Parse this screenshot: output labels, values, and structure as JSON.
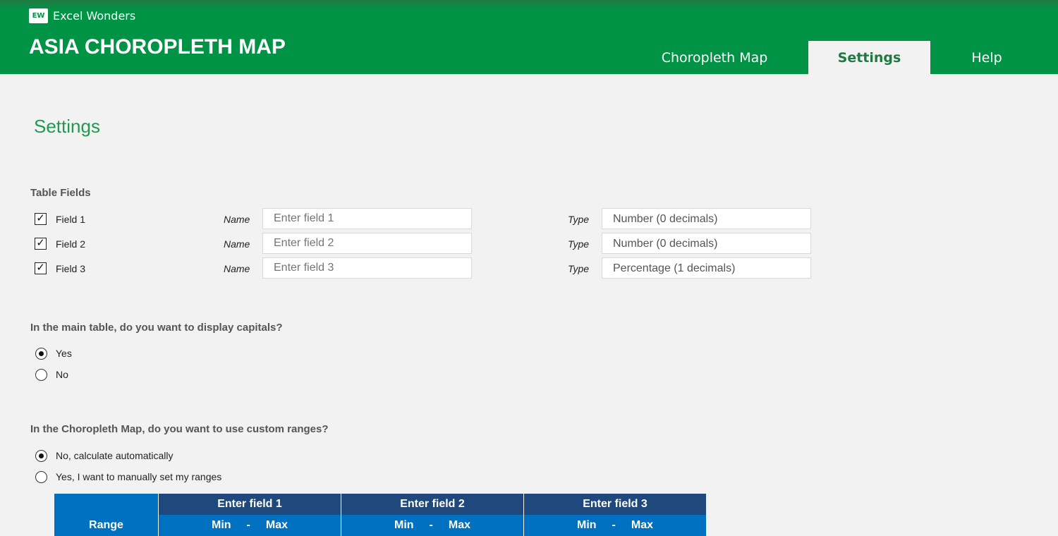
{
  "header": {
    "brand": "Excel Wonders",
    "brand_mark": "EW",
    "title": "ASIA CHOROPLETH MAP",
    "tabs": [
      {
        "label": "Choropleth Map",
        "active": false
      },
      {
        "label": "Settings",
        "active": true
      },
      {
        "label": "Help",
        "active": false
      }
    ]
  },
  "page_title": "Settings",
  "table_fields": {
    "heading": "Table Fields",
    "name_label": "Name",
    "type_label": "Type",
    "fields": [
      {
        "label": "Field 1",
        "checked": true,
        "name_placeholder": "Enter field 1",
        "type": "Number (0 decimals)"
      },
      {
        "label": "Field 2",
        "checked": true,
        "name_placeholder": "Enter field 2",
        "type": "Number (0 decimals)"
      },
      {
        "label": "Field 3",
        "checked": true,
        "name_placeholder": "Enter field 3",
        "type": "Percentage (1 decimals)"
      }
    ]
  },
  "capitals": {
    "question": "In the main table, do you want to display capitals?",
    "options": [
      {
        "label": "Yes",
        "selected": true
      },
      {
        "label": "No",
        "selected": false
      }
    ]
  },
  "ranges": {
    "question": "In the Choropleth Map, do you want to use custom ranges?",
    "options": [
      {
        "label": "No, calculate automatically",
        "selected": true
      },
      {
        "label": "Yes, I want to manually set my ranges",
        "selected": false
      }
    ]
  },
  "range_table": {
    "range_header": "Range",
    "columns": [
      "Enter field 1",
      "Enter field 2",
      "Enter field 3"
    ],
    "min": "Min",
    "sep": "-",
    "max": "Max"
  },
  "colors": {
    "header_green": "#009245",
    "table_dark": "#1f497d",
    "table_blue": "#0070c0"
  }
}
